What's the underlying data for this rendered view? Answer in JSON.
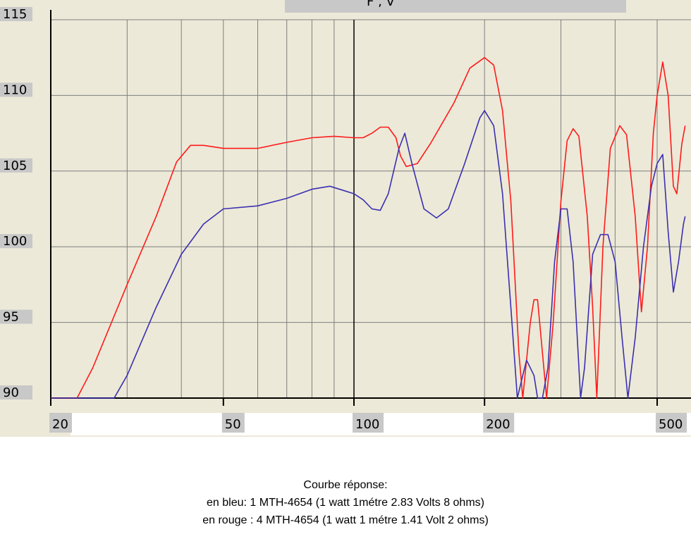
{
  "chart_data": {
    "type": "line",
    "title": "",
    "xlabel": "",
    "ylabel": "",
    "x_scale": "log",
    "xlim": [
      20,
      560
    ],
    "ylim": [
      90,
      115
    ],
    "x_ticks": [
      20,
      50,
      100,
      200,
      500
    ],
    "y_ticks": [
      90,
      95,
      100,
      105,
      110,
      115
    ],
    "grid": true,
    "colors": {
      "blue": "#3b2fb0",
      "red": "#ff1a1a",
      "plot_bg": "#ece9d8",
      "label_bg": "#c8c8c8"
    },
    "series": [
      {
        "color": "#ff1a1a",
        "points": [
          [
            20,
            90
          ],
          [
            23,
            90
          ],
          [
            25,
            92
          ],
          [
            30,
            97.5
          ],
          [
            35,
            102
          ],
          [
            39,
            105.6
          ],
          [
            42,
            106.7
          ],
          [
            45,
            106.7
          ],
          [
            50,
            106.5
          ],
          [
            60,
            106.5
          ],
          [
            70,
            106.9
          ],
          [
            80,
            107.2
          ],
          [
            90,
            107.3
          ],
          [
            100,
            107.2
          ],
          [
            105,
            107.2
          ],
          [
            110,
            107.5
          ],
          [
            115,
            107.9
          ],
          [
            120,
            107.9
          ],
          [
            125,
            107.2
          ],
          [
            128,
            106
          ],
          [
            132,
            105.3
          ],
          [
            140,
            105.5
          ],
          [
            150,
            106.8
          ],
          [
            170,
            109.5
          ],
          [
            185,
            111.8
          ],
          [
            200,
            112.5
          ],
          [
            210,
            112
          ],
          [
            220,
            109
          ],
          [
            230,
            103
          ],
          [
            240,
            93
          ],
          [
            245,
            90
          ],
          [
            255,
            95
          ],
          [
            260,
            96.5
          ],
          [
            265,
            96.5
          ],
          [
            272,
            93
          ],
          [
            278,
            90
          ],
          [
            288,
            95
          ],
          [
            300,
            103
          ],
          [
            310,
            107
          ],
          [
            320,
            107.8
          ],
          [
            330,
            107.3
          ],
          [
            345,
            102
          ],
          [
            355,
            96
          ],
          [
            363,
            90
          ],
          [
            375,
            100
          ],
          [
            390,
            106.5
          ],
          [
            410,
            108
          ],
          [
            425,
            107.4
          ],
          [
            445,
            102
          ],
          [
            460,
            95.7
          ],
          [
            475,
            100
          ],
          [
            490,
            107.5
          ],
          [
            500,
            110
          ],
          [
            515,
            112.2
          ],
          [
            530,
            110
          ],
          [
            545,
            104
          ],
          [
            555,
            103.5
          ],
          [
            570,
            106.8
          ],
          [
            580,
            108
          ]
        ]
      },
      {
        "color": "#3b2fb0",
        "points": [
          [
            20,
            90
          ],
          [
            28,
            90
          ],
          [
            30,
            91.5
          ],
          [
            35,
            96
          ],
          [
            40,
            99.5
          ],
          [
            45,
            101.5
          ],
          [
            50,
            102.5
          ],
          [
            60,
            102.7
          ],
          [
            70,
            103.2
          ],
          [
            80,
            103.8
          ],
          [
            88,
            104
          ],
          [
            95,
            103.7
          ],
          [
            100,
            103.5
          ],
          [
            105,
            103.1
          ],
          [
            110,
            102.5
          ],
          [
            115,
            102.4
          ],
          [
            120,
            103.5
          ],
          [
            127,
            106.5
          ],
          [
            131,
            107.5
          ],
          [
            136,
            105.5
          ],
          [
            145,
            102.5
          ],
          [
            155,
            101.9
          ],
          [
            165,
            102.5
          ],
          [
            180,
            105.5
          ],
          [
            195,
            108.5
          ],
          [
            200,
            109
          ],
          [
            210,
            108
          ],
          [
            220,
            103.5
          ],
          [
            230,
            96
          ],
          [
            238,
            90
          ],
          [
            245,
            91.5
          ],
          [
            250,
            92.5
          ],
          [
            260,
            91.5
          ],
          [
            265,
            90
          ],
          [
            272,
            90
          ],
          [
            280,
            92
          ],
          [
            290,
            99
          ],
          [
            300,
            102.5
          ],
          [
            310,
            102.5
          ],
          [
            320,
            99
          ],
          [
            333,
            90
          ],
          [
            340,
            92
          ],
          [
            355,
            99.5
          ],
          [
            370,
            100.8
          ],
          [
            385,
            100.8
          ],
          [
            400,
            99
          ],
          [
            415,
            94
          ],
          [
            428,
            90
          ],
          [
            445,
            94
          ],
          [
            465,
            100
          ],
          [
            485,
            104
          ],
          [
            500,
            105.5
          ],
          [
            515,
            106.1
          ],
          [
            530,
            101
          ],
          [
            545,
            97
          ],
          [
            560,
            99
          ],
          [
            575,
            101.5
          ],
          [
            580,
            102
          ]
        ]
      }
    ]
  },
  "header_fragment": "F , V",
  "caption": {
    "line1": "Courbe réponse:",
    "line2": "en bleu: 1 MTH-4654 (1 watt 1métre 2.83 Volts 8 ohms)",
    "line3": "en rouge : 4 MTH-4654 (1 watt 1 métre 1.41 Volt 2 ohms)"
  }
}
